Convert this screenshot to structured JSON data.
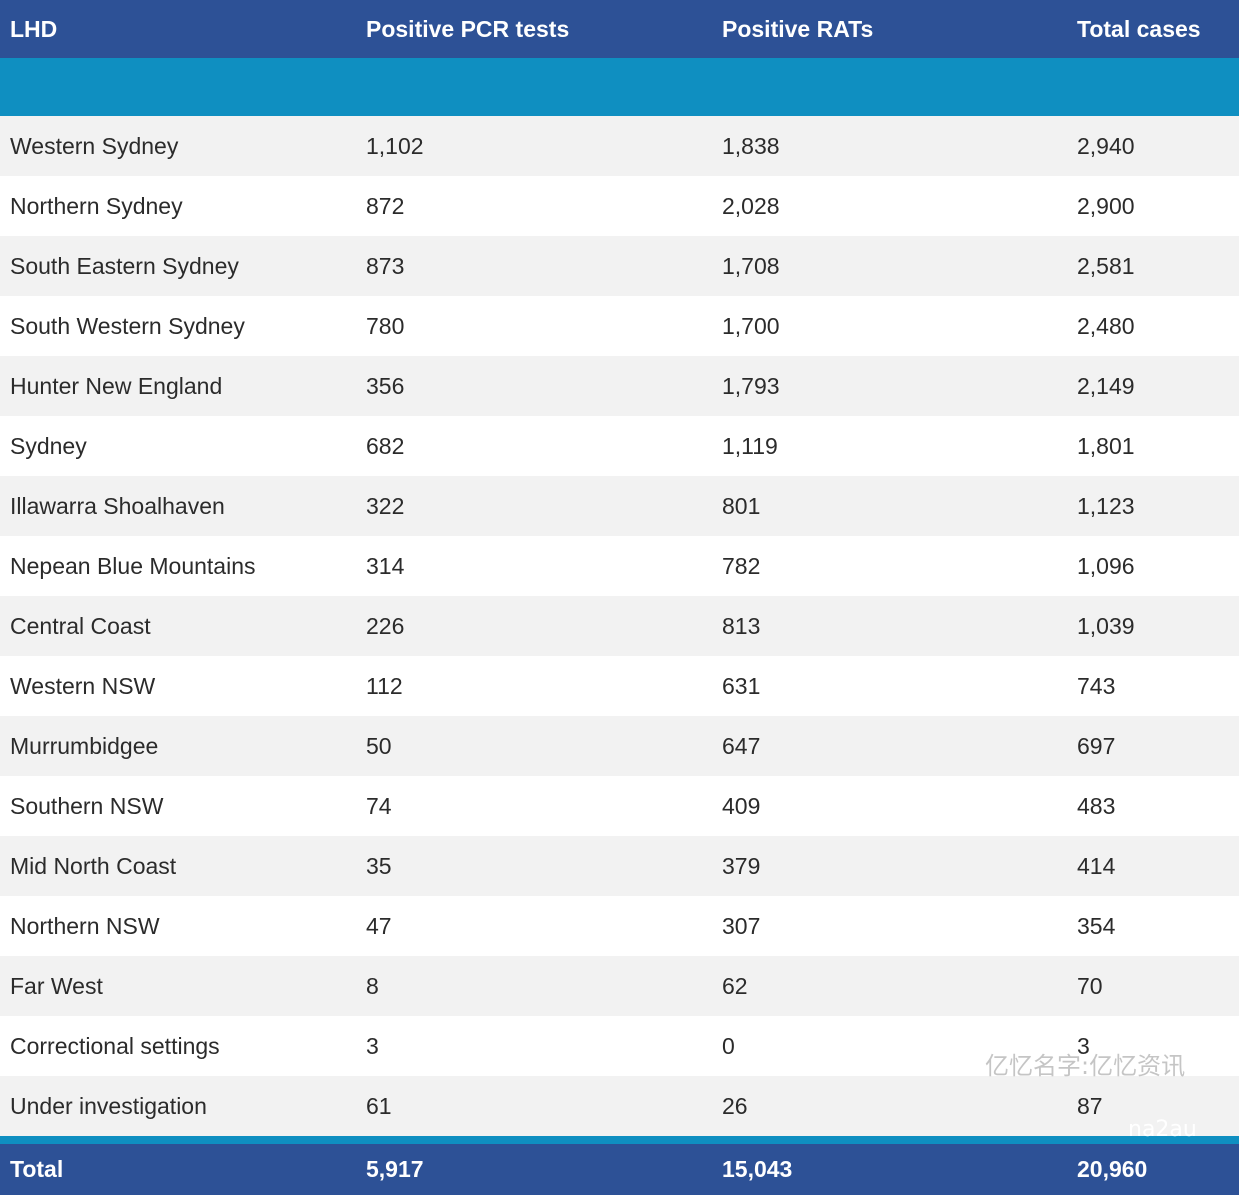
{
  "table": {
    "headers": [
      "LHD",
      "Positive PCR tests",
      "Positive RATs",
      "Total cases"
    ],
    "rows": [
      [
        "Western Sydney",
        "1,102",
        "1,838",
        "2,940"
      ],
      [
        "Northern Sydney",
        "872",
        "2,028",
        "2,900"
      ],
      [
        "South Eastern Sydney",
        "873",
        "1,708",
        "2,581"
      ],
      [
        "South Western Sydney",
        "780",
        "1,700",
        "2,480"
      ],
      [
        "Hunter New England",
        "356",
        "1,793",
        "2,149"
      ],
      [
        "Sydney",
        "682",
        "1,119",
        "1,801"
      ],
      [
        "Illawarra Shoalhaven",
        "322",
        "801",
        "1,123"
      ],
      [
        "Nepean Blue Mountains",
        "314",
        "782",
        "1,096"
      ],
      [
        "Central Coast",
        "226",
        "813",
        "1,039"
      ],
      [
        "Western NSW",
        "112",
        "631",
        "743"
      ],
      [
        "Murrumbidgee",
        "50",
        "647",
        "697"
      ],
      [
        "Southern NSW",
        "74",
        "409",
        "483"
      ],
      [
        "Mid North Coast",
        "35",
        "379",
        "414"
      ],
      [
        "Northern NSW",
        "47",
        "307",
        "354"
      ],
      [
        "Far West",
        "8",
        "62",
        "70"
      ],
      [
        "Correctional settings",
        "3",
        "0",
        "3"
      ],
      [
        "Under investigation",
        "61",
        "26",
        "87"
      ]
    ],
    "total": [
      "Total",
      "5,917",
      "15,043",
      "20,960"
    ]
  },
  "watermark": {
    "chinese": "亿忆名字:亿忆资讯",
    "site": "na2au"
  },
  "colors": {
    "header_bg": "#2d5196",
    "stripe": "#0f8fc1",
    "row_alt": "#f2f2f2"
  }
}
